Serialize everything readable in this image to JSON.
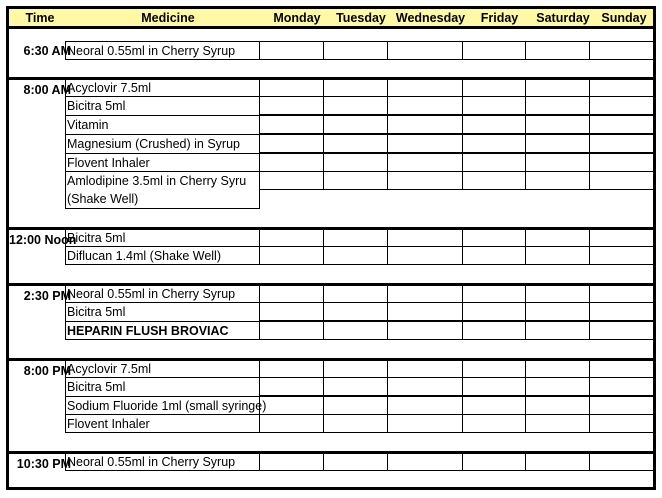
{
  "header": {
    "time": "Time",
    "medicine": "Medicine",
    "days": [
      "Monday",
      "Tuesday",
      "Wednesday",
      "Friday",
      "Saturday",
      "Sunday"
    ]
  },
  "groups": [
    {
      "time": "6:30 AM",
      "items": [
        {
          "name": "Neoral 0.55ml in Cherry Syrup"
        }
      ]
    },
    {
      "time": "8:00 AM",
      "items": [
        {
          "name": "Acyclovir 7.5ml"
        },
        {
          "name": "Bicitra 5ml"
        },
        {
          "name": "Vitamin"
        },
        {
          "name": "Magnesium (Crushed) in Syrup"
        },
        {
          "name": "Flovent Inhaler"
        },
        {
          "name": "Amlodipine 3.5ml in Cherry Syru (Shake Well)"
        }
      ]
    },
    {
      "time": "12:00 Noon",
      "items": [
        {
          "name": "Bicitra 5ml"
        },
        {
          "name": "Diflucan 1.4ml (Shake Well)"
        }
      ]
    },
    {
      "time": "2:30 PM",
      "items": [
        {
          "name": "Neoral 0.55ml in Cherry Syrup"
        },
        {
          "name": "Bicitra 5ml"
        },
        {
          "name": "HEPARIN FLUSH BROVIAC",
          "bold": true
        }
      ]
    },
    {
      "time": "8:00 PM",
      "items": [
        {
          "name": "Acyclovir 7.5ml"
        },
        {
          "name": "Bicitra 5ml"
        },
        {
          "name": "Sodium Fluoride 1ml (small syringe)"
        },
        {
          "name": "Flovent Inhaler"
        }
      ]
    },
    {
      "time": "10:30 PM",
      "items": [
        {
          "name": "Neoral 0.55ml in Cherry Syrup"
        }
      ]
    }
  ]
}
